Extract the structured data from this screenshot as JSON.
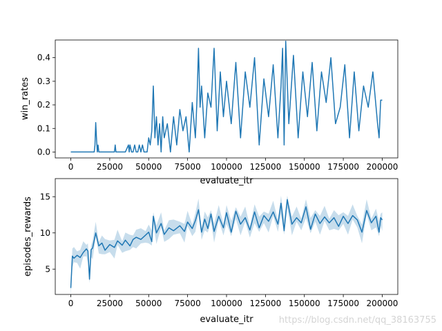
{
  "watermark": "https://blog.csdn.net/qq_38163755",
  "colors": {
    "line": "#1f77b4",
    "band": "#1f77b4",
    "axes": "#000000",
    "background": "#ffffff"
  },
  "chart_data": [
    {
      "type": "line",
      "xlabel": "evaluate_itr",
      "ylabel": "win_rates",
      "xlim": [
        -10000,
        210000
      ],
      "ylim": [
        -0.025,
        0.475
      ],
      "xticks": [
        0,
        25000,
        50000,
        75000,
        100000,
        125000,
        150000,
        175000,
        200000
      ],
      "yticks": [
        0.0,
        0.1,
        0.2,
        0.3,
        0.4
      ],
      "ytick_labels": [
        "0.0",
        "0.1",
        "0.2",
        "0.3",
        "0.4"
      ],
      "grid": false,
      "legend": "none",
      "series": [
        {
          "x": [
            0,
            5000,
            10000,
            15000,
            15500,
            16000,
            16500,
            17000,
            17500,
            18000,
            18500,
            20000,
            25000,
            28000,
            28500,
            29000,
            30000,
            35000,
            37000,
            37500,
            38000,
            39000,
            40000,
            41000,
            42000,
            43000,
            44000,
            45000,
            46000,
            47000,
            48000,
            49000,
            50000,
            51000,
            52000,
            53000,
            54000,
            55000,
            56000,
            57000,
            58000,
            59000,
            60000,
            62000,
            64000,
            66000,
            68000,
            70000,
            72000,
            74000,
            76000,
            78000,
            80000,
            81000,
            82000,
            83000,
            84000,
            86000,
            88000,
            90000,
            92000,
            94000,
            96000,
            98000,
            100000,
            103000,
            106000,
            109000,
            112000,
            115000,
            118000,
            121000,
            124000,
            127000,
            130000,
            133000,
            135000,
            136000,
            137000,
            138000,
            140000,
            143000,
            146000,
            149000,
            152000,
            155000,
            158000,
            161000,
            164000,
            167000,
            170000,
            173000,
            176000,
            179000,
            182000,
            185000,
            188000,
            191000,
            194000,
            197000,
            198000,
            199000,
            200000
          ],
          "values": [
            0.0,
            0.0,
            0.0,
            0.0,
            0.03,
            0.125,
            0.06,
            0.0,
            0.03,
            0.0,
            0.0,
            0.0,
            0.0,
            0.0,
            0.03,
            0.0,
            0.0,
            0.0,
            0.03,
            0.0,
            0.03,
            0.0,
            0.0,
            0.03,
            0.0,
            0.0,
            0.03,
            0.0,
            0.03,
            0.0,
            0.0,
            0.0,
            0.06,
            0.03,
            0.09,
            0.28,
            0.06,
            0.15,
            0.03,
            0.12,
            0.0,
            0.15,
            0.06,
            0.12,
            0.0,
            0.15,
            0.03,
            0.18,
            0.09,
            0.15,
            0.0,
            0.21,
            0.06,
            0.22,
            0.44,
            0.19,
            0.28,
            0.06,
            0.25,
            0.19,
            0.44,
            0.09,
            0.34,
            0.15,
            0.3,
            0.12,
            0.38,
            0.06,
            0.34,
            0.19,
            0.4,
            0.03,
            0.31,
            0.15,
            0.37,
            0.06,
            0.28,
            0.44,
            0.03,
            0.47,
            0.12,
            0.41,
            0.06,
            0.34,
            0.15,
            0.38,
            0.09,
            0.34,
            0.21,
            0.4,
            0.12,
            0.19,
            0.37,
            0.06,
            0.34,
            0.09,
            0.28,
            0.19,
            0.34,
            0.12,
            0.06,
            0.22,
            0.22
          ]
        }
      ]
    },
    {
      "type": "line",
      "xlabel": "evaluate_itr",
      "ylabel": "episodes_rewards",
      "xlim": [
        -10000,
        210000
      ],
      "ylim": [
        1.5,
        17.5
      ],
      "xticks": [
        0,
        25000,
        50000,
        75000,
        100000,
        125000,
        150000,
        175000,
        200000
      ],
      "yticks": [
        5,
        10,
        15
      ],
      "ytick_labels": [
        "5",
        "10",
        "15"
      ],
      "grid": false,
      "legend": "none",
      "series": [
        {
          "x": [
            0,
            1000,
            2000,
            4000,
            6000,
            8000,
            10000,
            11000,
            12000,
            13000,
            14000,
            16000,
            18000,
            20000,
            22000,
            25000,
            28000,
            30000,
            33000,
            35000,
            38000,
            40000,
            42000,
            45000,
            48000,
            50000,
            52000,
            53000,
            55000,
            58000,
            60000,
            63000,
            66000,
            70000,
            73000,
            75000,
            78000,
            80000,
            82000,
            84000,
            86000,
            88000,
            90000,
            92000,
            95000,
            98000,
            100000,
            103000,
            106000,
            109000,
            112000,
            115000,
            118000,
            121000,
            124000,
            127000,
            130000,
            133000,
            135000,
            137000,
            139000,
            142000,
            145000,
            148000,
            151000,
            154000,
            157000,
            160000,
            163000,
            166000,
            169000,
            172000,
            175000,
            178000,
            181000,
            184000,
            187000,
            190000,
            193000,
            196000,
            198000,
            199000,
            200000
          ],
          "values": [
            2.4,
            6.8,
            6.5,
            6.9,
            6.6,
            7.3,
            7.8,
            7.5,
            3.6,
            7.7,
            7.9,
            10.0,
            8.2,
            8.6,
            7.6,
            8.4,
            8.0,
            8.9,
            8.3,
            9.0,
            8.2,
            9.1,
            9.4,
            9.1,
            9.7,
            10.1,
            8.8,
            12.3,
            10.0,
            11.3,
            9.8,
            10.7,
            10.3,
            11.0,
            10.2,
            11.5,
            10.6,
            11.7,
            13.2,
            10.1,
            11.9,
            10.6,
            12.6,
            10.2,
            12.3,
            10.7,
            12.8,
            10.1,
            13.0,
            11.2,
            12.1,
            10.4,
            12.9,
            10.7,
            12.4,
            11.6,
            12.9,
            11.2,
            14.1,
            10.3,
            14.6,
            11.2,
            12.1,
            11.4,
            13.6,
            10.5,
            12.6,
            11.3,
            12.2,
            11.4,
            12.1,
            10.9,
            12.3,
            11.3,
            12.4,
            11.8,
            10.1,
            13.1,
            11.4,
            12.3,
            10.1,
            12.1,
            11.8
          ]
        }
      ]
    }
  ]
}
